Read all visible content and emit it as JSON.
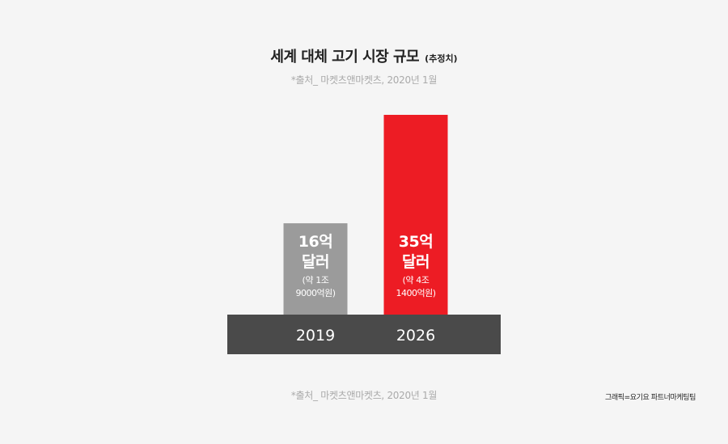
{
  "header": {
    "title": "세계 대체 고기 시장 규모",
    "title_note": "(추정치)",
    "source_top": "*출처_ 마켓츠앤마켓츠, 2020년 1월"
  },
  "footer": {
    "source_bottom": "*출처_ 마켓츠앤마켓츠, 2020년 1월",
    "credit": "그래픽=요기요 파트너마케팅팀"
  },
  "colors": {
    "background": "#f5f5f5",
    "bar_2019": "#9b9b9b",
    "bar_2026": "#ed1c24",
    "base": "#4a4a4a",
    "text_on_bar": "#ffffff"
  },
  "chart_data": {
    "type": "bar",
    "categories": [
      "2019",
      "2026"
    ],
    "values": [
      16,
      35
    ],
    "unit": "억 달러",
    "value_labels": [
      {
        "line1": "16억",
        "line2": "달러",
        "note1": "(약 1조",
        "note2": "9000억원)"
      },
      {
        "line1": "35억",
        "line2": "달러",
        "note1": "(약 4조",
        "note2": "1400억원)"
      }
    ],
    "title": "세계 대체 고기 시장 규모",
    "xlabel": "",
    "ylabel": "",
    "grid": false,
    "legend": "none"
  }
}
